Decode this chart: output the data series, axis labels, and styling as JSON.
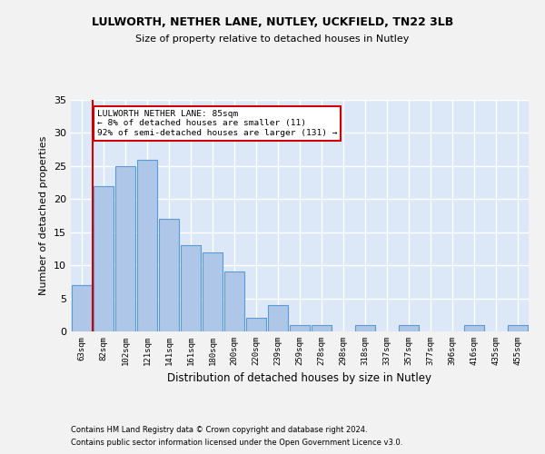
{
  "title1": "LULWORTH, NETHER LANE, NUTLEY, UCKFIELD, TN22 3LB",
  "title2": "Size of property relative to detached houses in Nutley",
  "xlabel": "Distribution of detached houses by size in Nutley",
  "ylabel": "Number of detached properties",
  "categories": [
    "63sqm",
    "82sqm",
    "102sqm",
    "121sqm",
    "141sqm",
    "161sqm",
    "180sqm",
    "200sqm",
    "220sqm",
    "239sqm",
    "259sqm",
    "278sqm",
    "298sqm",
    "318sqm",
    "337sqm",
    "357sqm",
    "377sqm",
    "396sqm",
    "416sqm",
    "435sqm",
    "455sqm"
  ],
  "values": [
    7,
    22,
    25,
    26,
    17,
    13,
    12,
    9,
    2,
    4,
    1,
    1,
    0,
    1,
    0,
    1,
    0,
    0,
    1,
    0,
    1
  ],
  "bar_color": "#aec6e8",
  "bar_edge_color": "#5b9bd5",
  "background_color": "#dce8f7",
  "grid_color": "#ffffff",
  "fig_background": "#f2f2f2",
  "vline_x_index": 1,
  "vline_color": "#cc0000",
  "annotation_text": "LULWORTH NETHER LANE: 85sqm\n← 8% of detached houses are smaller (11)\n92% of semi-detached houses are larger (131) →",
  "annotation_box_color": "#ffffff",
  "annotation_box_edge": "#cc0000",
  "ylim": [
    0,
    35
  ],
  "yticks": [
    0,
    5,
    10,
    15,
    20,
    25,
    30,
    35
  ],
  "footer1": "Contains HM Land Registry data © Crown copyright and database right 2024.",
  "footer2": "Contains public sector information licensed under the Open Government Licence v3.0."
}
